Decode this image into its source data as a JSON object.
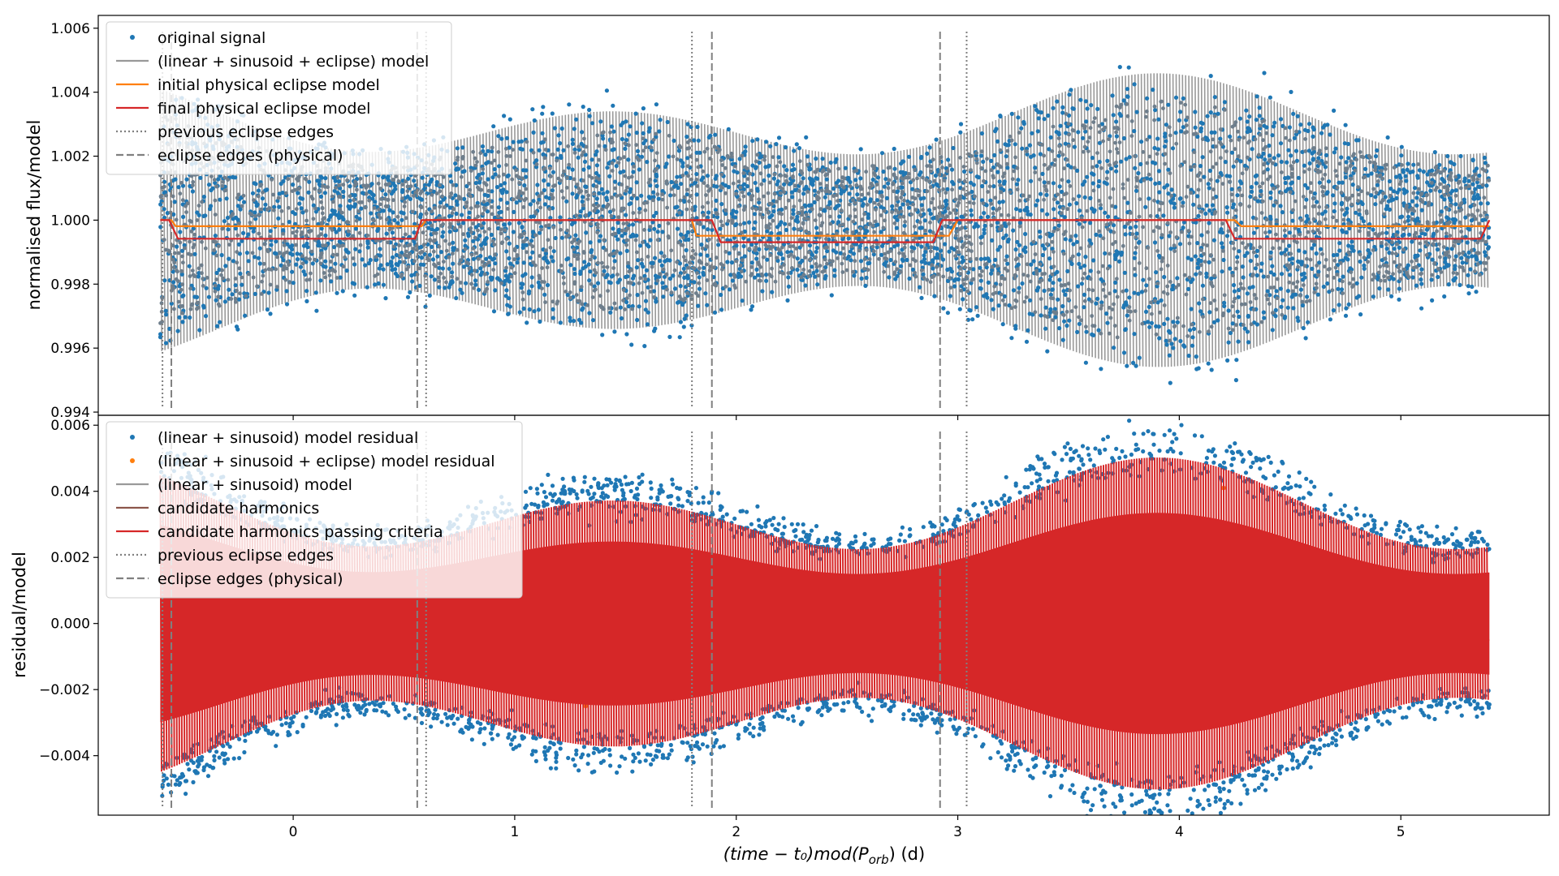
{
  "chart_data": [
    {
      "type": "scatter",
      "panel": "top",
      "ylabel": "normalised flux/model",
      "xlabel": "",
      "xlim": [
        -0.88,
        5.67
      ],
      "ylim": [
        0.9939,
        1.0064
      ],
      "yticks": [
        0.994,
        0.996,
        0.998,
        1.0,
        1.002,
        1.004,
        1.006
      ],
      "ytick_labels": [
        "0.994",
        "0.996",
        "0.998",
        "1.000",
        "1.002",
        "1.004",
        "1.006"
      ],
      "xticks": [
        0,
        1,
        2,
        3,
        4,
        5
      ],
      "xtick_labels": [
        "",
        "",
        "",
        "",
        "",
        ""
      ],
      "legend": {
        "placement": "top-left",
        "entries": [
          {
            "label": "original signal",
            "kind": "marker",
            "color": "#1f77b4"
          },
          {
            "label": "(linear + sinusoid + eclipse) model",
            "kind": "line",
            "color": "#999999"
          },
          {
            "label": "initial physical eclipse model",
            "kind": "line",
            "color": "#ff7f0e"
          },
          {
            "label": "final physical eclipse model",
            "kind": "line",
            "color": "#d62728"
          },
          {
            "label": "previous eclipse edges",
            "kind": "dotted",
            "color": "#808080"
          },
          {
            "label": "eclipse edges (physical)",
            "kind": "dashed",
            "color": "#808080"
          }
        ]
      },
      "series": [
        {
          "name": "original signal",
          "style": "scatter",
          "color": "#1f77b4",
          "baseline": 1.0,
          "envelope": "amplitude modulated"
        },
        {
          "name": "(linear + sinusoid + eclipse) model",
          "style": "line",
          "color": "#999999"
        },
        {
          "name": "initial physical eclipse model",
          "style": "line",
          "color": "#ff7f0e",
          "x": [
            -0.6,
            -0.55,
            -0.53,
            0.55,
            0.58,
            0.6,
            1.8,
            1.82,
            1.85,
            2.93,
            2.96,
            3.0,
            4.25,
            4.28,
            4.32,
            5.4
          ],
          "y": [
            1.0,
            1.0,
            0.99981,
            0.99981,
            0.99981,
            1.0,
            1.0,
            0.99951,
            0.99951,
            0.99951,
            0.99951,
            1.0,
            1.0,
            0.99981,
            0.99981,
            0.99981
          ]
        },
        {
          "name": "final physical eclipse model",
          "style": "line",
          "color": "#d62728",
          "x": [
            -0.6,
            -0.56,
            -0.52,
            0.55,
            0.58,
            0.62,
            1.89,
            1.93,
            2.89,
            2.93,
            4.21,
            4.25,
            5.36,
            5.4
          ],
          "y": [
            1.0,
            1.0,
            0.99942,
            0.99942,
            1.0,
            1.0,
            1.0,
            0.99931,
            0.99931,
            1.0,
            1.0,
            0.99942,
            0.99942,
            1.0
          ]
        }
      ],
      "vlines_dotted": [
        -0.59,
        0.6,
        1.8,
        3.04
      ],
      "vlines_dashed": [
        -0.55,
        0.56,
        1.89,
        2.92
      ]
    },
    {
      "type": "scatter",
      "panel": "bottom",
      "ylabel": "residual/model",
      "xlabel": "(time − t₀)mod(P",
      "xlabel_sub": "orb",
      "xlabel_tail": ") (d)",
      "xlim": [
        -0.88,
        5.67
      ],
      "ylim": [
        -0.0058,
        0.0063
      ],
      "yticks": [
        -0.004,
        -0.002,
        0.0,
        0.002,
        0.004,
        0.006
      ],
      "ytick_labels": [
        "−0.004",
        "−0.002",
        "0.000",
        "0.002",
        "0.004",
        "0.006"
      ],
      "xticks": [
        0,
        1,
        2,
        3,
        4,
        5
      ],
      "xtick_labels": [
        "0",
        "1",
        "2",
        "3",
        "4",
        "5"
      ],
      "legend": {
        "placement": "top-left",
        "entries": [
          {
            "label": "(linear + sinusoid) model residual",
            "kind": "marker",
            "color": "#1f77b4"
          },
          {
            "label": "(linear + sinusoid + eclipse) model residual",
            "kind": "marker",
            "color": "#ff7f0e"
          },
          {
            "label": "(linear + sinusoid) model",
            "kind": "line",
            "color": "#999999"
          },
          {
            "label": "candidate harmonics",
            "kind": "line",
            "color": "#8c564b"
          },
          {
            "label": "candidate harmonics passing criteria",
            "kind": "line",
            "color": "#d62728"
          },
          {
            "label": "previous eclipse edges",
            "kind": "dotted",
            "color": "#808080"
          },
          {
            "label": "eclipse edges (physical)",
            "kind": "dashed",
            "color": "#808080"
          }
        ]
      },
      "series": [
        {
          "name": "(linear + sinusoid) model residual",
          "style": "scatter",
          "color": "#1f77b4",
          "baseline": 0.0
        },
        {
          "name": "(linear + sinusoid + eclipse) model residual",
          "style": "scatter",
          "color": "#ff7f0e",
          "baseline": 0.0
        },
        {
          "name": "candidate harmonics passing criteria",
          "style": "line",
          "color": "#d62728"
        }
      ],
      "vlines_dotted": [
        -0.59,
        0.6,
        1.8,
        3.04
      ],
      "vlines_dashed": [
        -0.55,
        0.56,
        1.89,
        2.92
      ]
    }
  ]
}
